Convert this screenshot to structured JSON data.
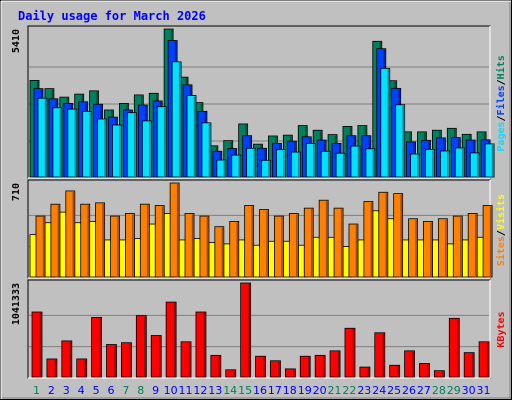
{
  "title": "Daily usage for March 2026",
  "colors": {
    "background": "#C0C0C0",
    "title": "#0000FF",
    "hits": "#00805C",
    "files": "#0040FF",
    "pages": "#00E0FF",
    "visits": "#FFFF00",
    "sites": "#FF8000",
    "kbytes": "#FF0000",
    "weekend_day": "#00805C",
    "weekday": "#0000FF"
  },
  "chart_data": [
    {
      "type": "bar",
      "panel": "hits-files-pages",
      "y_axis_label": "5410",
      "ylim": [
        0,
        5410
      ],
      "legend": [
        {
          "label": "Pages",
          "color": "#00E0FF"
        },
        {
          "label": "/",
          "color": "#000000"
        },
        {
          "label": "Files",
          "color": "#0040FF"
        },
        {
          "label": "/",
          "color": "#000000"
        },
        {
          "label": "Hits",
          "color": "#00805C"
        }
      ],
      "categories": [
        "1",
        "2",
        "3",
        "4",
        "5",
        "6",
        "7",
        "8",
        "9",
        "10",
        "11",
        "12",
        "13",
        "14",
        "15",
        "16",
        "17",
        "18",
        "19",
        "20",
        "21",
        "22",
        "23",
        "24",
        "25",
        "26",
        "27",
        "28",
        "29",
        "30",
        "31"
      ],
      "series": [
        {
          "name": "Hits",
          "values": [
            3530,
            3230,
            2920,
            3030,
            3150,
            2450,
            2690,
            3000,
            3060,
            5410,
            3650,
            2720,
            1140,
            1330,
            1940,
            1200,
            1500,
            1530,
            1880,
            1710,
            1550,
            1850,
            1880,
            4960,
            3520,
            1650,
            1650,
            1710,
            1780,
            1560,
            1650
          ]
        },
        {
          "name": "Files",
          "values": [
            3230,
            2860,
            2690,
            2750,
            2660,
            2190,
            2450,
            2630,
            2780,
            4990,
            3370,
            2400,
            940,
            1040,
            1510,
            1050,
            1230,
            1310,
            1470,
            1350,
            1230,
            1510,
            1510,
            4690,
            3240,
            1280,
            1340,
            1430,
            1440,
            1350,
            1360
          ]
        },
        {
          "name": "Pages",
          "values": [
            2880,
            2530,
            2480,
            2400,
            2120,
            1900,
            2350,
            2050,
            2570,
            4210,
            2980,
            1980,
            620,
            800,
            1050,
            610,
            1000,
            910,
            1230,
            940,
            870,
            1130,
            1030,
            3970,
            2640,
            840,
            1010,
            950,
            1060,
            880,
            1210
          ]
        }
      ]
    },
    {
      "type": "bar",
      "panel": "visits-sites",
      "y_axis_label": "710",
      "ylim": [
        0,
        710
      ],
      "legend": [
        {
          "label": "Sites",
          "color": "#FF8000"
        },
        {
          "label": "/",
          "color": "#000000"
        },
        {
          "label": "Visits",
          "color": "#FFFF00"
        }
      ],
      "categories": [
        "1",
        "2",
        "3",
        "4",
        "5",
        "6",
        "7",
        "8",
        "9",
        "10",
        "11",
        "12",
        "13",
        "14",
        "15",
        "16",
        "17",
        "18",
        "19",
        "20",
        "21",
        "22",
        "23",
        "24",
        "25",
        "26",
        "27",
        "28",
        "29",
        "30",
        "31"
      ],
      "series": [
        {
          "name": "Visits",
          "values": [
            320,
            410,
            490,
            410,
            420,
            280,
            280,
            290,
            400,
            480,
            280,
            290,
            260,
            250,
            280,
            240,
            270,
            270,
            240,
            300,
            300,
            230,
            280,
            500,
            440,
            280,
            280,
            280,
            250,
            280,
            300
          ]
        },
        {
          "name": "Sites",
          "values": [
            460,
            550,
            650,
            550,
            560,
            460,
            480,
            550,
            540,
            710,
            480,
            460,
            380,
            420,
            540,
            510,
            460,
            480,
            520,
            580,
            520,
            400,
            570,
            640,
            630,
            440,
            420,
            440,
            460,
            480,
            540
          ]
        }
      ]
    },
    {
      "type": "bar",
      "panel": "kbytes",
      "y_axis_label": "1041333",
      "ylim": [
        0,
        1041333
      ],
      "legend": [
        {
          "label": "KBytes",
          "color": "#FF0000"
        }
      ],
      "categories": [
        "1",
        "2",
        "3",
        "4",
        "5",
        "6",
        "7",
        "8",
        "9",
        "10",
        "11",
        "12",
        "13",
        "14",
        "15",
        "16",
        "17",
        "18",
        "19",
        "20",
        "21",
        "22",
        "23",
        "24",
        "25",
        "26",
        "27",
        "28",
        "29",
        "30",
        "31"
      ],
      "series": [
        {
          "name": "KBytes",
          "values": [
            720000,
            200000,
            400000,
            200000,
            660000,
            360000,
            380000,
            680000,
            460000,
            830000,
            390000,
            720000,
            240000,
            80000,
            1041333,
            230000,
            180000,
            90000,
            230000,
            240000,
            290000,
            540000,
            110000,
            490000,
            130000,
            290000,
            150000,
            70000,
            650000,
            270000,
            390000
          ]
        }
      ]
    }
  ],
  "x_axis": {
    "weekend_days": [
      1,
      7,
      8,
      14,
      15,
      21,
      22,
      28,
      29
    ]
  }
}
